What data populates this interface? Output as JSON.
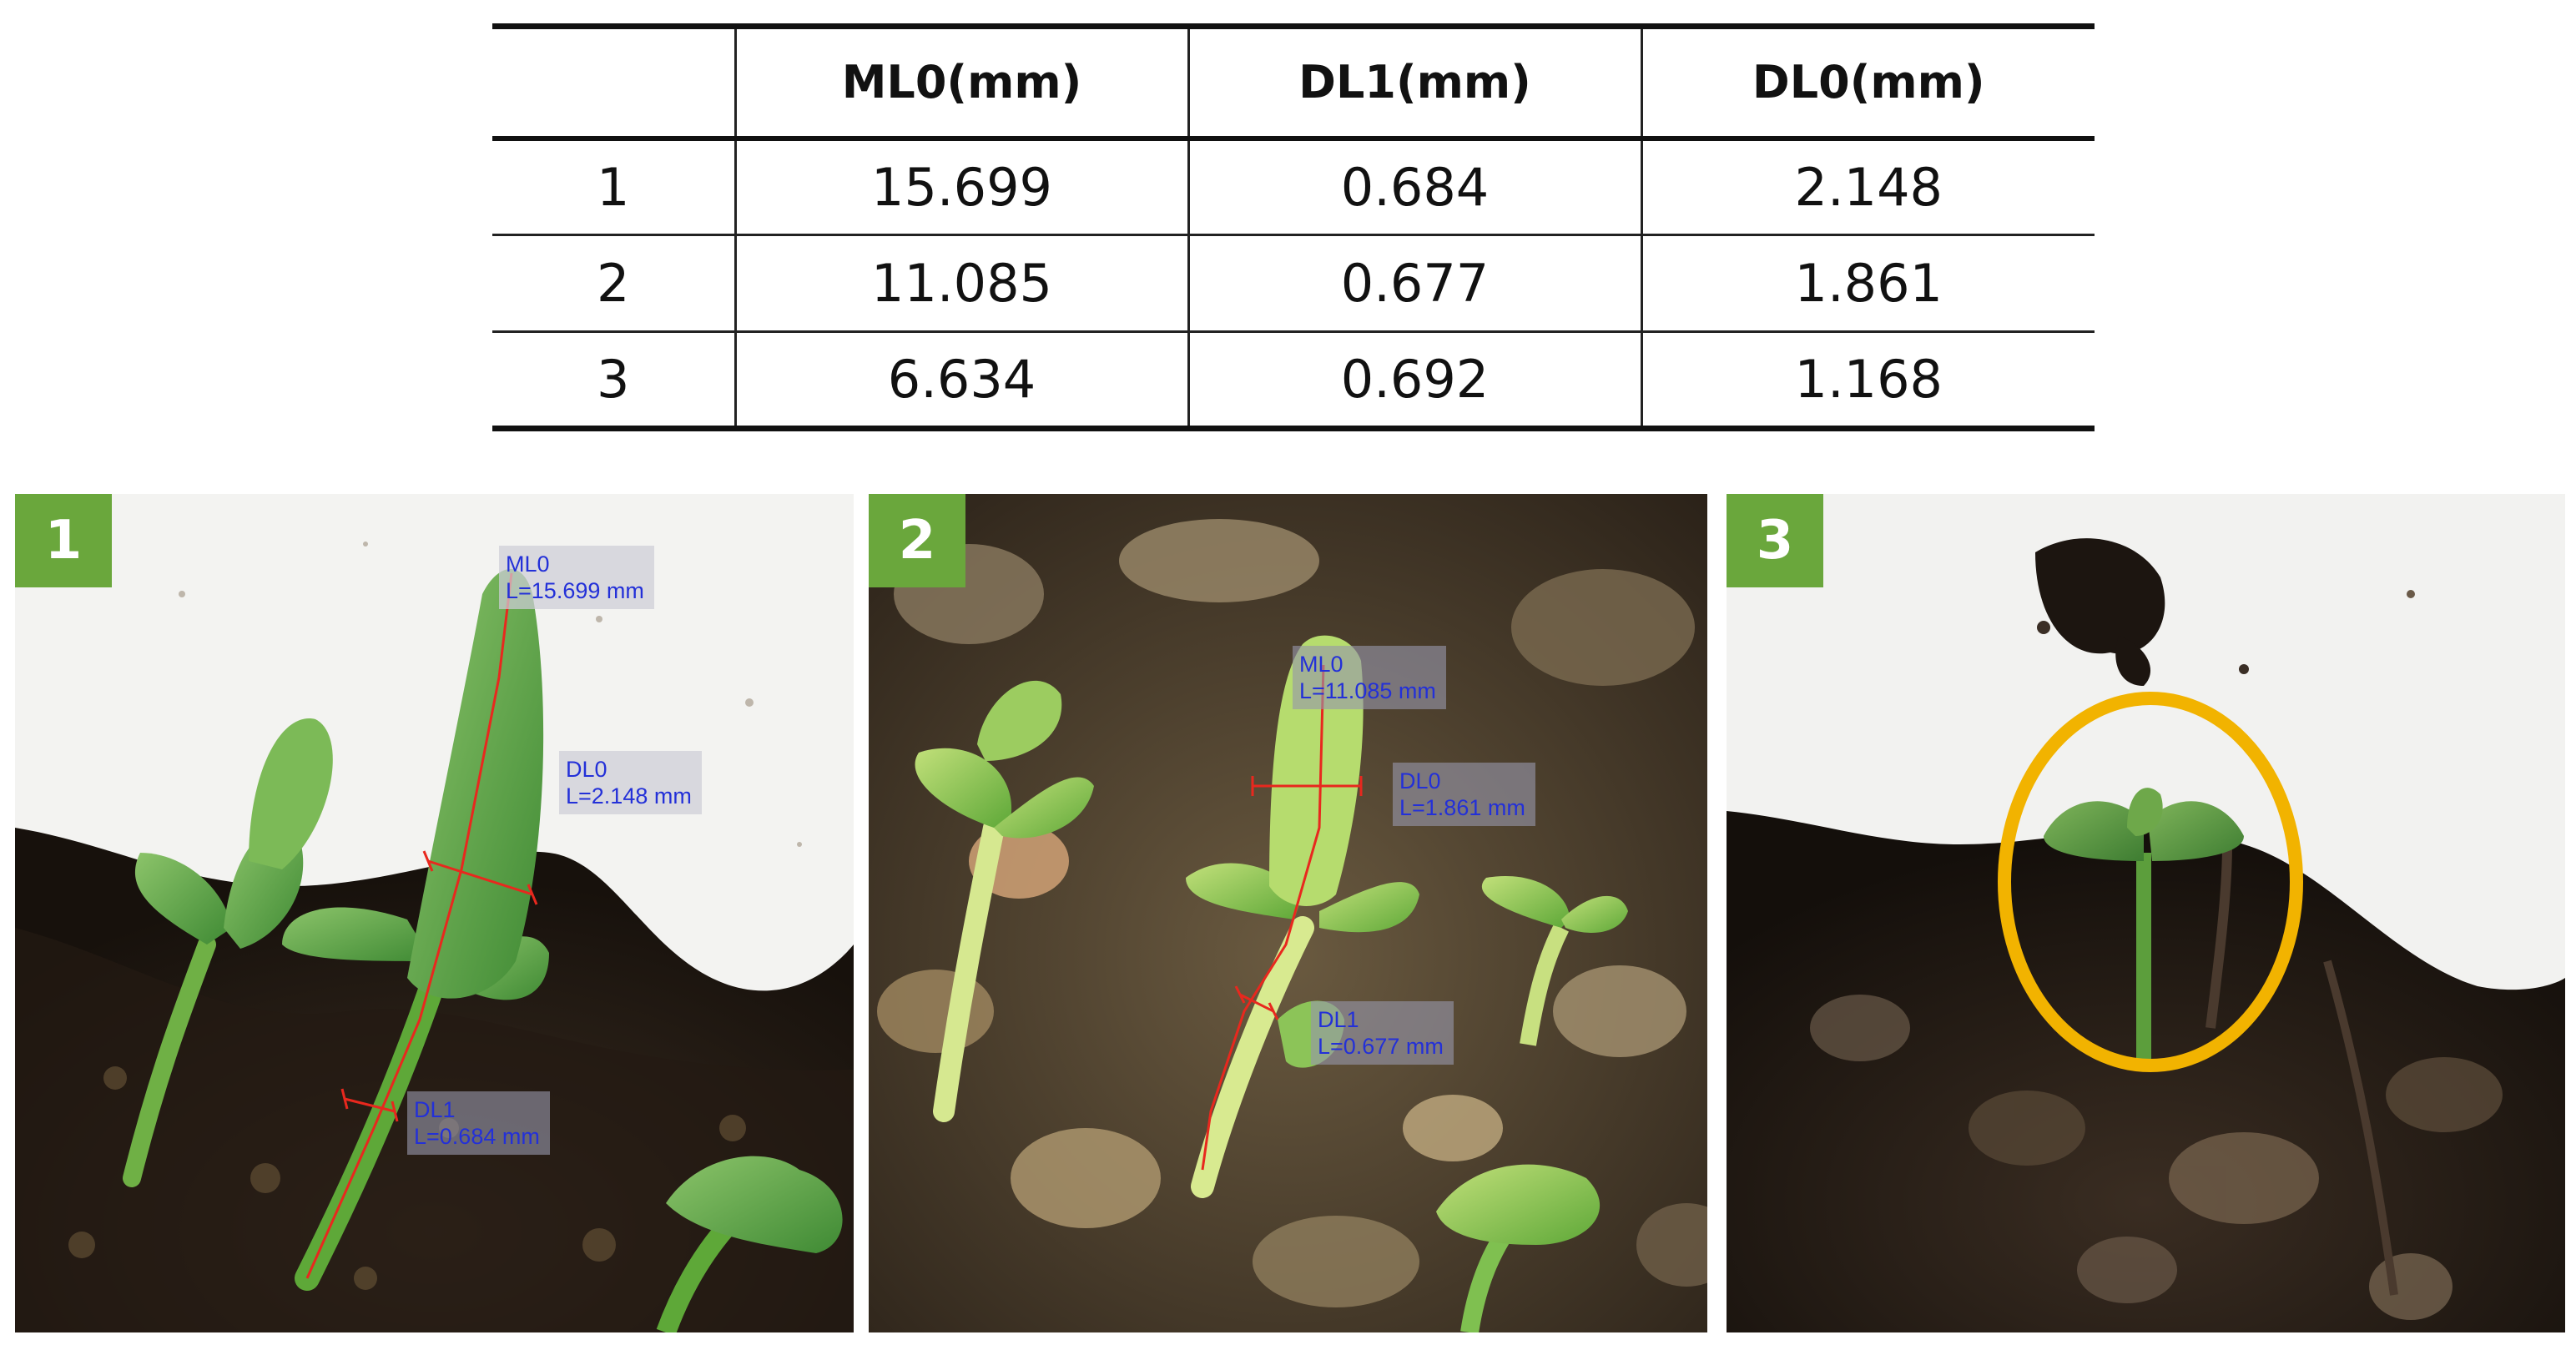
{
  "table": {
    "headers": [
      "",
      "ML0(mm)",
      "DL1(mm)",
      "DL0(mm)"
    ],
    "rows": [
      [
        "1",
        "15.699",
        "0.684",
        "2.148"
      ],
      [
        "2",
        "11.085",
        "0.677",
        "1.861"
      ],
      [
        "3",
        "6.634",
        "0.692",
        "1.168"
      ]
    ]
  },
  "panels": [
    {
      "badge": "1",
      "labels": {
        "ml0": {
          "name": "ML0",
          "value": "L=15.699 mm"
        },
        "dl0": {
          "name": "DL0",
          "value": "L=2.148 mm"
        },
        "dl1": {
          "name": "DL1",
          "value": "L=0.684 mm"
        }
      }
    },
    {
      "badge": "2",
      "labels": {
        "ml0": {
          "name": "ML0",
          "value": "L=11.085 mm"
        },
        "dl0": {
          "name": "DL0",
          "value": "L=1.861 mm"
        },
        "dl1": {
          "name": "DL1",
          "value": "L=0.677 mm"
        }
      }
    },
    {
      "badge": "3"
    }
  ],
  "colors": {
    "badge": "#6aa73c",
    "measure_line": "#e8281e",
    "label_text": "#2330d8",
    "highlight_ellipse": "#f2b300"
  }
}
